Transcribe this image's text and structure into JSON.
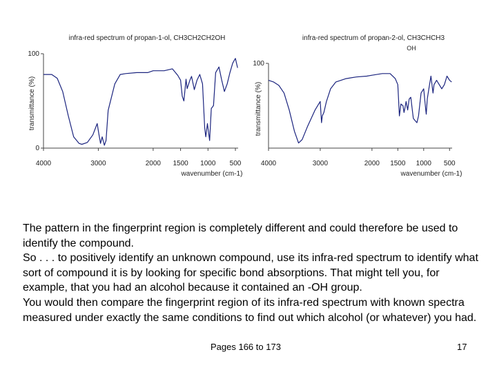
{
  "chart_data": [
    {
      "type": "line",
      "title": "infra-red spectrum of propan-1-ol, CH3CH2CH2OH",
      "xlabel": "wavenumber (cm-1)",
      "ylabel": "transmittance (%)",
      "xlim": [
        4000,
        450
      ],
      "ylim": [
        0,
        100
      ],
      "x_reversed": true,
      "x_ticks": [
        4000,
        3000,
        2000,
        1500,
        1000,
        500
      ],
      "x_tick_labels": [
        "4000",
        "3000",
        "2000",
        "1500",
        "1000",
        "500"
      ],
      "y_ticks": [
        0,
        100
      ],
      "y_tick_labels": [
        "0",
        "100"
      ],
      "series": [
        {
          "color": "#1a237e",
          "points": [
            [
              4000,
              78
            ],
            [
              3850,
              78
            ],
            [
              3750,
              74
            ],
            [
              3650,
              60
            ],
            [
              3550,
              35
            ],
            [
              3450,
              12
            ],
            [
              3350,
              5
            ],
            [
              3300,
              4
            ],
            [
              3200,
              6
            ],
            [
              3100,
              14
            ],
            [
              3020,
              26
            ],
            [
              2990,
              15
            ],
            [
              2960,
              5
            ],
            [
              2930,
              12
            ],
            [
              2890,
              3
            ],
            [
              2860,
              8
            ],
            [
              2820,
              40
            ],
            [
              2700,
              68
            ],
            [
              2600,
              78
            ],
            [
              2500,
              79
            ],
            [
              2300,
              80
            ],
            [
              2200,
              80
            ],
            [
              2100,
              80
            ],
            [
              2000,
              82
            ],
            [
              1800,
              82
            ],
            [
              1650,
              84
            ],
            [
              1550,
              77
            ],
            [
              1500,
              72
            ],
            [
              1470,
              55
            ],
            [
              1440,
              50
            ],
            [
              1400,
              73
            ],
            [
              1380,
              63
            ],
            [
              1330,
              72
            ],
            [
              1300,
              76
            ],
            [
              1250,
              62
            ],
            [
              1200,
              72
            ],
            [
              1150,
              78
            ],
            [
              1100,
              68
            ],
            [
              1060,
              22
            ],
            [
              1040,
              12
            ],
            [
              1010,
              26
            ],
            [
              970,
              8
            ],
            [
              940,
              42
            ],
            [
              900,
              45
            ],
            [
              860,
              80
            ],
            [
              800,
              86
            ],
            [
              750,
              72
            ],
            [
              700,
              60
            ],
            [
              650,
              68
            ],
            [
              600,
              80
            ],
            [
              550,
              90
            ],
            [
              500,
              95
            ],
            [
              460,
              85
            ]
          ]
        }
      ]
    },
    {
      "type": "line",
      "title": "infra-red spectrum of propan-2-ol, CH3CHCH3",
      "title_sub": "OH",
      "xlabel": "wavenumber (cm-1)",
      "ylabel": "transmittance (%)",
      "xlim": [
        4000,
        450
      ],
      "ylim": [
        0,
        100
      ],
      "x_reversed": true,
      "x_ticks": [
        4000,
        3000,
        2000,
        1500,
        1000,
        500
      ],
      "x_tick_labels": [
        "4000",
        "3000",
        "2000",
        "1500",
        "1000",
        "500"
      ],
      "y_ticks": [
        100
      ],
      "y_tick_labels": [
        "100"
      ],
      "series": [
        {
          "color": "#1a237e",
          "points": [
            [
              4000,
              80
            ],
            [
              3900,
              78
            ],
            [
              3800,
              74
            ],
            [
              3700,
              65
            ],
            [
              3600,
              45
            ],
            [
              3500,
              20
            ],
            [
              3420,
              6
            ],
            [
              3350,
              10
            ],
            [
              3250,
              25
            ],
            [
              3100,
              45
            ],
            [
              3000,
              55
            ],
            [
              2975,
              30
            ],
            [
              2960,
              38
            ],
            [
              2930,
              42
            ],
            [
              2880,
              55
            ],
            [
              2800,
              70
            ],
            [
              2700,
              78
            ],
            [
              2500,
              82
            ],
            [
              2300,
              84
            ],
            [
              2100,
              85
            ],
            [
              2000,
              86
            ],
            [
              1800,
              88
            ],
            [
              1650,
              88
            ],
            [
              1550,
              82
            ],
            [
              1500,
              75
            ],
            [
              1470,
              38
            ],
            [
              1440,
              52
            ],
            [
              1400,
              50
            ],
            [
              1380,
              42
            ],
            [
              1360,
              48
            ],
            [
              1340,
              55
            ],
            [
              1310,
              45
            ],
            [
              1280,
              58
            ],
            [
              1250,
              60
            ],
            [
              1200,
              35
            ],
            [
              1160,
              32
            ],
            [
              1130,
              30
            ],
            [
              1100,
              38
            ],
            [
              1050,
              65
            ],
            [
              1000,
              70
            ],
            [
              960,
              45
            ],
            [
              950,
              40
            ],
            [
              930,
              58
            ],
            [
              900,
              70
            ],
            [
              860,
              85
            ],
            [
              820,
              65
            ],
            [
              800,
              75
            ],
            [
              750,
              80
            ],
            [
              650,
              70
            ],
            [
              600,
              75
            ],
            [
              550,
              85
            ],
            [
              500,
              80
            ],
            [
              460,
              78
            ]
          ]
        }
      ]
    }
  ],
  "text": {
    "para1": "The pattern in the fingerprint region is completely different and could therefore be used to identify the compound.",
    "para2": "So . . . to positively identify an unknown compound, use its infra-red spectrum to identify what sort of compound it is by looking for specific bond absorptions. That might tell you, for example, that you had an alcohol because it contained an -OH group.",
    "para3": "You would then compare the fingerprint region of its infra-red spectrum with known spectra measured under exactly the same conditions to find out which alcohol (or whatever) you had."
  },
  "footer": {
    "pages": "Pages 166 to 173",
    "page_number": "17"
  }
}
